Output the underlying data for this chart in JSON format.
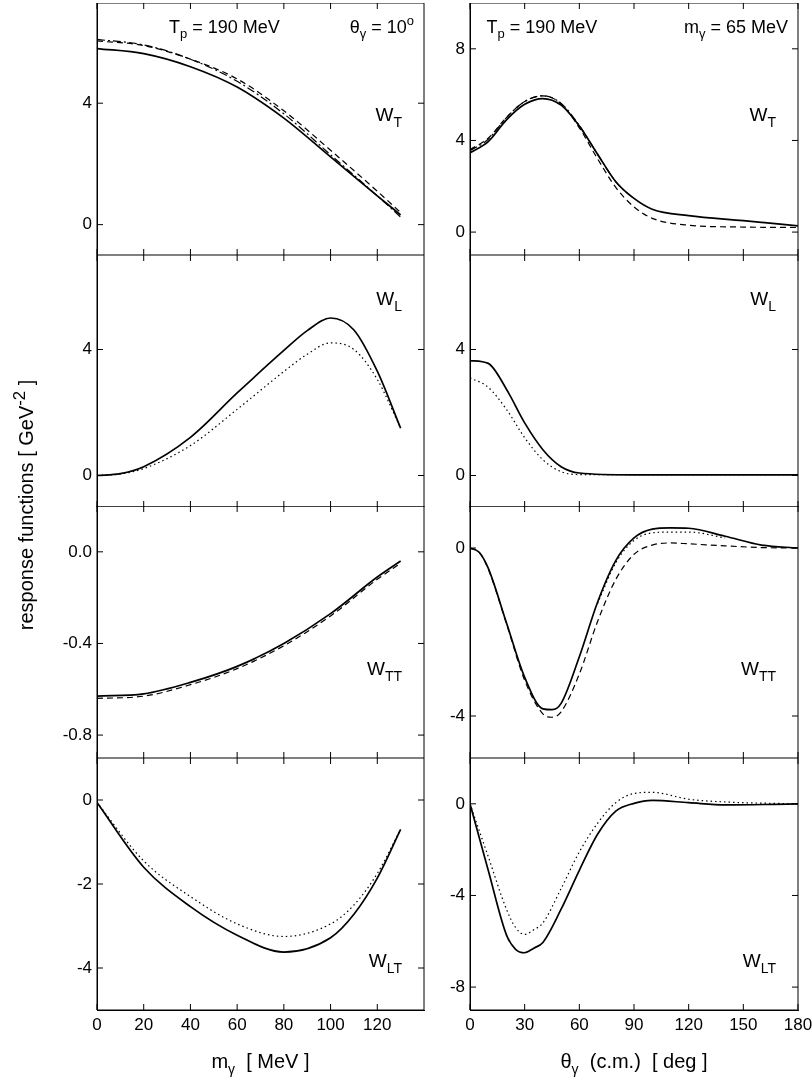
{
  "chart_data": [
    {
      "type": "line",
      "xlim": [
        0,
        140
      ],
      "xticks": [
        0,
        20,
        40,
        60,
        80,
        100,
        120
      ],
      "ylim": [
        -1,
        7.3
      ],
      "yticks": [
        0,
        4
      ],
      "tick_labels": "y",
      "annotations": [
        "T$_{p}$ = 190 MeV",
        "θ$_{γ}$ = 10$^{o}$",
        "W$_{T}$"
      ],
      "series": [
        {
          "color": "#000000",
          "line_style": "solid",
          "x": [
            0,
            20,
            40,
            60,
            80,
            100,
            120,
            130
          ],
          "values": [
            5.8,
            5.63,
            5.2,
            4.53,
            3.51,
            2.23,
            0.95,
            0.32
          ]
        },
        {
          "color": "#000000",
          "line_style": "dashed",
          "x": [
            0,
            20,
            40,
            60,
            80,
            100,
            120,
            130
          ],
          "values": [
            6.05,
            5.9,
            5.45,
            4.8,
            3.75,
            2.45,
            1.1,
            0.4
          ]
        },
        {
          "color": "#000000",
          "line_style": "dashdot",
          "x": [
            0,
            20,
            40,
            60,
            80,
            100,
            120,
            130
          ],
          "values": [
            6.1,
            5.92,
            5.45,
            4.72,
            3.65,
            2.3,
            0.95,
            0.25
          ]
        }
      ]
    },
    {
      "type": "line",
      "xlim": [
        0,
        180
      ],
      "xticks": [
        0,
        30,
        60,
        90,
        120,
        150,
        180
      ],
      "ylim": [
        -1,
        10
      ],
      "yticks": [
        0,
        4,
        8
      ],
      "tick_labels": "y",
      "annotations": [
        "T$_{p}$ = 190 MeV",
        "m$_{γ}$ = 65 MeV",
        "W$_{T}$"
      ],
      "series": [
        {
          "color": "#000000",
          "line_style": "solid",
          "x": [
            0,
            10,
            20,
            30,
            40,
            50,
            60,
            70,
            80,
            90,
            100,
            120,
            150,
            180
          ],
          "values": [
            3.46,
            3.95,
            4.9,
            5.58,
            5.83,
            5.54,
            4.63,
            3.4,
            2.2,
            1.47,
            1.0,
            0.72,
            0.5,
            0.27
          ]
        },
        {
          "color": "#000000",
          "line_style": "dashed",
          "x": [
            0,
            10,
            20,
            30,
            40,
            50,
            60,
            70,
            80,
            90,
            100,
            120,
            150,
            180
          ],
          "values": [
            3.6,
            4.1,
            5.0,
            5.7,
            5.95,
            5.6,
            4.55,
            3.2,
            1.95,
            1.1,
            0.6,
            0.3,
            0.22,
            0.2
          ]
        },
        {
          "color": "#000000",
          "line_style": "dashdot",
          "x": [
            0,
            10,
            20,
            30,
            40,
            50,
            60,
            70,
            80,
            90
          ],
          "values": [
            3.55,
            4.05,
            5.0,
            5.7,
            5.95,
            5.62,
            4.65,
            3.4,
            2.2,
            1.45
          ]
        }
      ]
    },
    {
      "type": "line",
      "xlim": [
        0,
        140
      ],
      "xticks": [
        0,
        20,
        40,
        60,
        80,
        100,
        120
      ],
      "ylim": [
        -1,
        7
      ],
      "yticks": [
        0,
        4
      ],
      "tick_labels": "y",
      "ylabel": "response functions  [ GeV$^{-2}$ ]",
      "annotations": [
        "W$_{L}$"
      ],
      "series": [
        {
          "color": "#000000",
          "line_style": "solid",
          "x": [
            0,
            10,
            20,
            40,
            60,
            80,
            90,
            100,
            110,
            120,
            130
          ],
          "values": [
            0,
            0.06,
            0.28,
            1.21,
            2.62,
            3.97,
            4.6,
            5.0,
            4.62,
            3.31,
            1.5
          ]
        },
        {
          "color": "#000000",
          "line_style": "dotted",
          "x": [
            0,
            10,
            20,
            40,
            60,
            80,
            90,
            100,
            110,
            120,
            130
          ],
          "values": [
            0,
            0.05,
            0.22,
            0.95,
            2.1,
            3.3,
            3.85,
            4.21,
            4.0,
            3.05,
            1.5
          ]
        }
      ]
    },
    {
      "type": "line",
      "xlim": [
        0,
        180
      ],
      "xticks": [
        0,
        30,
        60,
        90,
        120,
        150,
        180
      ],
      "ylim": [
        -1,
        7
      ],
      "yticks": [
        0,
        4
      ],
      "tick_labels": "y",
      "annotations": [
        "W$_{L}$"
      ],
      "series": [
        {
          "color": "#000000",
          "line_style": "solid",
          "x": [
            0,
            10,
            20,
            30,
            40,
            50,
            60,
            90,
            120,
            150,
            180
          ],
          "values": [
            3.65,
            3.56,
            2.74,
            1.67,
            0.82,
            0.28,
            0.08,
            0.02,
            0.02,
            0.02,
            0.02
          ]
        },
        {
          "color": "#000000",
          "line_style": "dotted",
          "x": [
            0,
            10,
            20,
            30,
            40,
            50,
            60,
            90,
            120,
            150,
            180
          ],
          "values": [
            3.1,
            2.8,
            2.1,
            1.2,
            0.5,
            0.12,
            0.03,
            0.03,
            0.03,
            0.03,
            0.03
          ]
        }
      ]
    },
    {
      "type": "line",
      "xlim": [
        0,
        140
      ],
      "xticks": [
        0,
        20,
        40,
        60,
        80,
        100,
        120
      ],
      "ylim": [
        -0.9,
        0.2
      ],
      "yticks": [
        {
          "value": 0,
          "label": "0.0"
        },
        -0.4,
        -0.8
      ],
      "tick_labels": "y",
      "annotations": [
        "W$_{TT}$"
      ],
      "series": [
        {
          "color": "#000000",
          "line_style": "solid",
          "x": [
            0,
            20,
            40,
            60,
            80,
            100,
            120,
            130
          ],
          "values": [
            -0.63,
            -0.62,
            -0.57,
            -0.5,
            -0.4,
            -0.27,
            -0.11,
            -0.04
          ]
        },
        {
          "color": "#000000",
          "line_style": "dashed",
          "x": [
            0,
            20,
            40,
            60,
            80,
            100,
            120,
            130
          ],
          "values": [
            -0.64,
            -0.63,
            -0.58,
            -0.51,
            -0.41,
            -0.28,
            -0.12,
            -0.05
          ]
        }
      ]
    },
    {
      "type": "line",
      "xlim": [
        0,
        180
      ],
      "xticks": [
        0,
        30,
        60,
        90,
        120,
        150,
        180
      ],
      "ylim": [
        -5,
        1
      ],
      "yticks": [
        0,
        -4
      ],
      "tick_labels": "y",
      "annotations": [
        "W$_{TT}$"
      ],
      "series": [
        {
          "color": "#000000",
          "line_style": "solid",
          "x": [
            0,
            5,
            10,
            20,
            30,
            40,
            45,
            50,
            60,
            70,
            80,
            90,
            100,
            110,
            120,
            140,
            160,
            180
          ],
          "values": [
            0,
            -0.1,
            -0.48,
            -1.78,
            -3.08,
            -3.83,
            -3.85,
            -3.7,
            -2.59,
            -1.29,
            -0.3,
            0.24,
            0.45,
            0.48,
            0.47,
            0.28,
            0.07,
            0
          ]
        },
        {
          "color": "#000000",
          "line_style": "dashed",
          "x": [
            0,
            5,
            10,
            20,
            30,
            40,
            45,
            50,
            60,
            70,
            80,
            90,
            100,
            110,
            120,
            140,
            160,
            180
          ],
          "values": [
            0,
            -0.1,
            -0.5,
            -1.8,
            -3.15,
            -3.95,
            -4.03,
            -3.9,
            -3.0,
            -1.75,
            -0.75,
            -0.15,
            0.07,
            0.12,
            0.1,
            0.05,
            0.01,
            0
          ]
        },
        {
          "color": "#000000",
          "line_style": "dotted",
          "x": [
            70,
            80,
            90,
            100,
            110,
            120,
            140
          ],
          "values": [
            -1.32,
            -0.35,
            0.18,
            0.36,
            0.38,
            0.38,
            0.24
          ]
        }
      ]
    },
    {
      "type": "line",
      "xlim": [
        0,
        140
      ],
      "xticks": [
        0,
        20,
        40,
        60,
        80,
        100,
        120
      ],
      "ylim": [
        -5,
        1
      ],
      "yticks": [
        0,
        -2,
        -4
      ],
      "xlabel": "m$_{γ}$  [ MeV ]",
      "annotations": [
        "W$_{LT}$"
      ],
      "series": [
        {
          "color": "#000000",
          "line_style": "solid",
          "x": [
            0,
            20,
            40,
            60,
            80,
            100,
            110,
            120,
            130
          ],
          "values": [
            -0.06,
            -1.6,
            -2.54,
            -3.22,
            -3.62,
            -3.28,
            -2.72,
            -1.86,
            -0.7
          ]
        },
        {
          "color": "#000000",
          "line_style": "dotted",
          "x": [
            0,
            20,
            40,
            60,
            80,
            100,
            110,
            120,
            130
          ],
          "values": [
            -0.06,
            -1.45,
            -2.3,
            -2.95,
            -3.25,
            -2.95,
            -2.5,
            -1.75,
            -0.7
          ]
        }
      ]
    },
    {
      "type": "line",
      "xlim": [
        0,
        180
      ],
      "xticks": [
        0,
        30,
        60,
        90,
        120,
        150,
        180
      ],
      "ylim": [
        -9,
        2
      ],
      "yticks": [
        0,
        -4,
        -8
      ],
      "xlabel": "θ$_{γ}$  (c.m.)  [ deg ]",
      "annotations": [
        "W$_{LT}$"
      ],
      "series": [
        {
          "color": "#000000",
          "line_style": "solid",
          "x": [
            0,
            10,
            20,
            25,
            30,
            35,
            40,
            50,
            60,
            70,
            80,
            90,
            100,
            120,
            140,
            180
          ],
          "values": [
            0,
            -2.9,
            -5.72,
            -6.35,
            -6.5,
            -6.3,
            -6.05,
            -4.6,
            -2.9,
            -1.33,
            -0.32,
            0.02,
            0.15,
            0.05,
            -0.05,
            0
          ]
        },
        {
          "color": "#000000",
          "line_style": "dotted",
          "x": [
            0,
            10,
            20,
            25,
            30,
            35,
            40,
            50,
            60,
            70,
            80,
            90,
            100,
            120,
            140,
            180
          ],
          "values": [
            0,
            -2.3,
            -4.6,
            -5.4,
            -5.7,
            -5.5,
            -5.2,
            -3.7,
            -2.1,
            -0.85,
            0.05,
            0.45,
            0.5,
            0.2,
            0.08,
            0
          ]
        }
      ]
    }
  ]
}
